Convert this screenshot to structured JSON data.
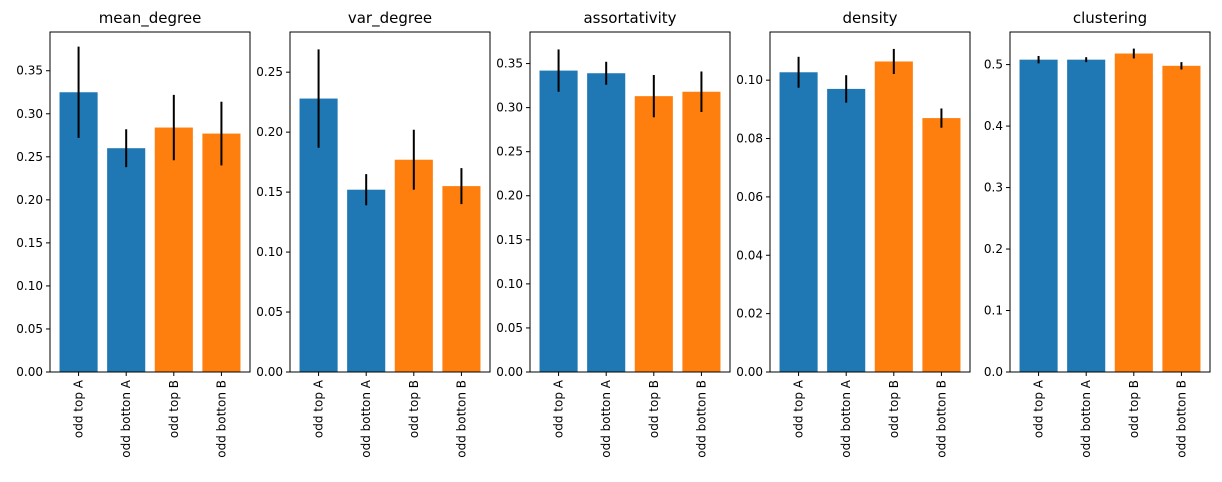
{
  "colors": {
    "A": "#1f77b4",
    "B": "#ff7f0e",
    "errorbar": "#000000"
  },
  "chart_data": [
    {
      "type": "bar",
      "title": "mean_degree",
      "categories": [
        "odd top A",
        "odd botton A",
        "odd top B",
        "odd botton B"
      ],
      "values": [
        0.325,
        0.26,
        0.284,
        0.277
      ],
      "errors": [
        0.053,
        0.022,
        0.038,
        0.037
      ],
      "groups": [
        "A",
        "A",
        "B",
        "B"
      ],
      "ylim": [
        0,
        0.395
      ],
      "yticks": [
        "0.00",
        "0.05",
        "0.10",
        "0.15",
        "0.20",
        "0.25",
        "0.30",
        "0.35"
      ],
      "grid": false
    },
    {
      "type": "bar",
      "title": "var_degree",
      "categories": [
        "odd top A",
        "odd botton A",
        "odd top B",
        "odd botton B"
      ],
      "values": [
        0.228,
        0.152,
        0.177,
        0.155
      ],
      "errors": [
        0.041,
        0.013,
        0.025,
        0.015
      ],
      "groups": [
        "A",
        "A",
        "B",
        "B"
      ],
      "ylim": [
        0,
        0.2835
      ],
      "yticks": [
        "0.00",
        "0.05",
        "0.10",
        "0.15",
        "0.20",
        "0.25"
      ],
      "grid": false
    },
    {
      "type": "bar",
      "title": "assortativity",
      "categories": [
        "odd top A",
        "odd botton A",
        "odd top B",
        "odd botton B"
      ],
      "values": [
        0.342,
        0.339,
        0.313,
        0.318
      ],
      "errors": [
        0.024,
        0.013,
        0.024,
        0.023
      ],
      "groups": [
        "A",
        "A",
        "B",
        "B"
      ],
      "ylim": [
        0,
        0.3858
      ],
      "yticks": [
        "0.00",
        "0.05",
        "0.10",
        "0.15",
        "0.20",
        "0.25",
        "0.30",
        "0.35"
      ],
      "grid": false
    },
    {
      "type": "bar",
      "title": "density",
      "categories": [
        "odd top A",
        "odd botton A",
        "odd top B",
        "odd botton B"
      ],
      "values": [
        0.1027,
        0.097,
        0.1064,
        0.087
      ],
      "errors": [
        0.0053,
        0.0047,
        0.0043,
        0.0033
      ],
      "groups": [
        "A",
        "A",
        "B",
        "B"
      ],
      "ylim": [
        0,
        0.1165
      ],
      "yticks": [
        "0.00",
        "0.02",
        "0.04",
        "0.06",
        "0.08",
        "0.10"
      ],
      "grid": false
    },
    {
      "type": "bar",
      "title": "clustering",
      "categories": [
        "odd top A",
        "odd botton A",
        "odd top B",
        "odd botton B"
      ],
      "values": [
        0.508,
        0.508,
        0.518,
        0.498
      ],
      "errors": [
        0.006,
        0.004,
        0.008,
        0.006
      ],
      "groups": [
        "A",
        "A",
        "B",
        "B"
      ],
      "ylim": [
        0,
        0.553
      ],
      "yticks": [
        "0.0",
        "0.1",
        "0.2",
        "0.3",
        "0.4",
        "0.5"
      ],
      "grid": false
    }
  ]
}
